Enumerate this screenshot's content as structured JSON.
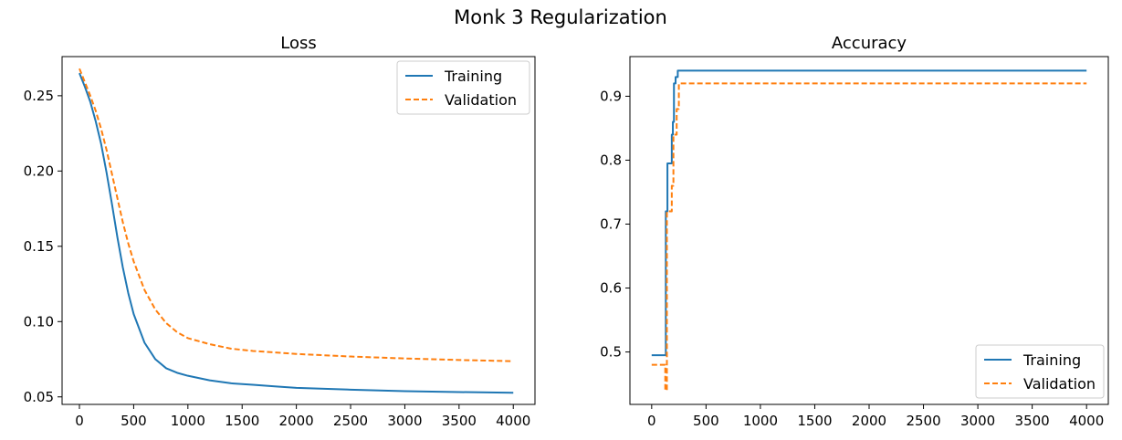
{
  "figure": {
    "suptitle": "Monk 3 Regularization"
  },
  "chart_data": [
    {
      "type": "line",
      "title": "Loss",
      "xlabel": "",
      "ylabel": "",
      "xlim": [
        -160,
        4200
      ],
      "ylim": [
        0.045,
        0.276
      ],
      "xticks": [
        0,
        500,
        1000,
        1500,
        2000,
        2500,
        3000,
        3500,
        4000
      ],
      "yticks": [
        0.05,
        0.1,
        0.15,
        0.2,
        0.25
      ],
      "ytick_labels": [
        "0.05",
        "0.10",
        "0.15",
        "0.20",
        "0.25"
      ],
      "grid": false,
      "legend": "top-right",
      "series": [
        {
          "name": "Training",
          "color": "#1f77b4",
          "style": "solid",
          "x": [
            0,
            50,
            100,
            150,
            200,
            250,
            300,
            350,
            400,
            450,
            500,
            600,
            700,
            800,
            900,
            1000,
            1200,
            1400,
            1600,
            1800,
            2000,
            2500,
            3000,
            3500,
            4000
          ],
          "y": [
            0.265,
            0.256,
            0.246,
            0.233,
            0.218,
            0.199,
            0.178,
            0.156,
            0.136,
            0.119,
            0.105,
            0.086,
            0.075,
            0.069,
            0.066,
            0.064,
            0.061,
            0.059,
            0.058,
            0.057,
            0.056,
            0.0548,
            0.0538,
            0.0532,
            0.0527
          ]
        },
        {
          "name": "Validation",
          "color": "#ff7f0e",
          "style": "dashed",
          "x": [
            0,
            50,
            100,
            150,
            200,
            250,
            300,
            350,
            400,
            450,
            500,
            600,
            700,
            800,
            900,
            1000,
            1200,
            1400,
            1600,
            1800,
            2000,
            2500,
            3000,
            3500,
            4000
          ],
          "y": [
            0.268,
            0.259,
            0.25,
            0.24,
            0.228,
            0.214,
            0.198,
            0.182,
            0.166,
            0.152,
            0.14,
            0.121,
            0.108,
            0.099,
            0.093,
            0.089,
            0.085,
            0.082,
            0.0805,
            0.0795,
            0.0785,
            0.0768,
            0.0755,
            0.0745,
            0.0737
          ]
        }
      ]
    },
    {
      "type": "line",
      "title": "Accuracy",
      "xlabel": "",
      "ylabel": "",
      "xlim": [
        -200,
        4200
      ],
      "ylim": [
        0.418,
        0.962
      ],
      "xticks": [
        0,
        500,
        1000,
        1500,
        2000,
        2500,
        3000,
        3500,
        4000
      ],
      "yticks": [
        0.5,
        0.6,
        0.7,
        0.8,
        0.9
      ],
      "ytick_labels": [
        "0.5",
        "0.6",
        "0.7",
        "0.8",
        "0.9"
      ],
      "grid": false,
      "legend": "bottom-right",
      "series": [
        {
          "name": "Training",
          "color": "#1f77b4",
          "style": "solid",
          "x": [
            0,
            130,
            130,
            145,
            145,
            160,
            160,
            185,
            185,
            195,
            195,
            205,
            205,
            220,
            220,
            240,
            240,
            4000
          ],
          "y": [
            0.495,
            0.495,
            0.72,
            0.72,
            0.795,
            0.795,
            0.795,
            0.795,
            0.84,
            0.84,
            0.86,
            0.86,
            0.92,
            0.92,
            0.93,
            0.93,
            0.94,
            0.94
          ]
        },
        {
          "name": "Validation",
          "color": "#ff7f0e",
          "style": "dashed",
          "x": [
            0,
            125,
            125,
            140,
            140,
            150,
            150,
            185,
            185,
            200,
            200,
            215,
            215,
            230,
            230,
            250,
            250,
            4000
          ],
          "y": [
            0.48,
            0.48,
            0.44,
            0.44,
            0.72,
            0.72,
            0.72,
            0.72,
            0.76,
            0.76,
            0.84,
            0.84,
            0.84,
            0.84,
            0.88,
            0.88,
            0.92,
            0.92
          ]
        }
      ]
    }
  ]
}
